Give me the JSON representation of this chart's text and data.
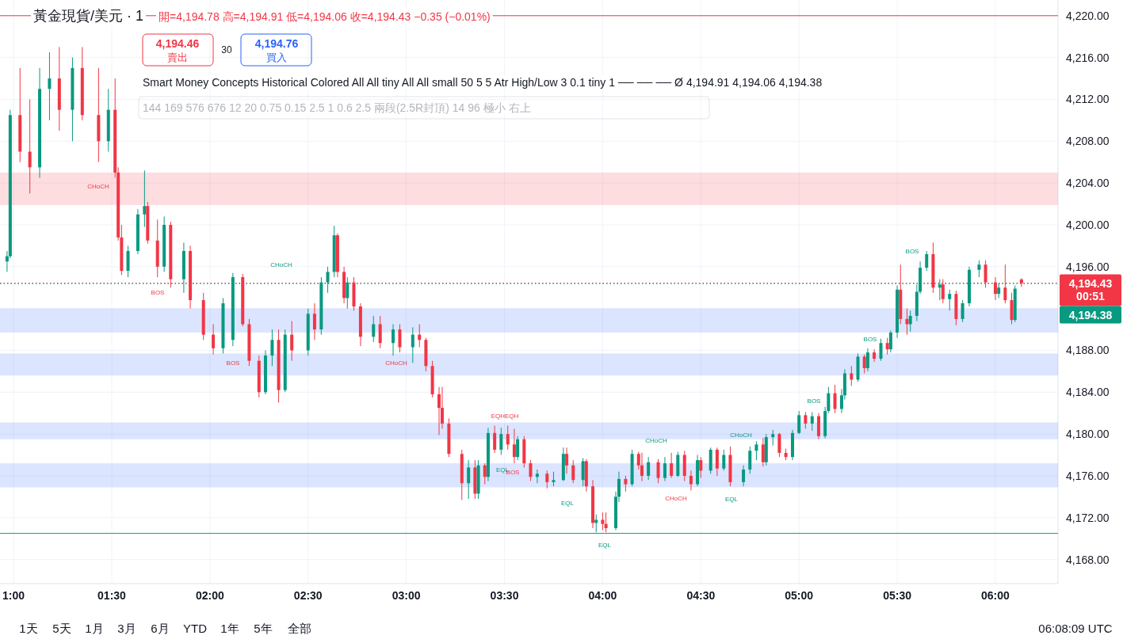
{
  "chart_data": {
    "type": "candlestick",
    "title": "黃金現貨/美元 · 1",
    "subtitle": "開=4,194.78 高=4,194.91 低=4,194.06 收=4,194.43 −0.35 (−0.01%)",
    "x": [
      0.967,
      0.983,
      1.033,
      1.083,
      1.133,
      1.183,
      1.233,
      1.3,
      1.35,
      1.433,
      1.483,
      1.517,
      1.533,
      1.55,
      1.583,
      1.633,
      1.667,
      1.683,
      1.733,
      1.767,
      1.8,
      1.867,
      1.9,
      1.967,
      2.017,
      2.067,
      2.117,
      2.167,
      2.2,
      2.25,
      2.283,
      2.317,
      2.35,
      2.383,
      2.417,
      2.5,
      2.533,
      2.567,
      2.6,
      2.633,
      2.65,
      2.683,
      2.7,
      2.733,
      2.767,
      2.833,
      2.867,
      2.933,
      2.967,
      3.033,
      3.067,
      3.1,
      3.133,
      3.167,
      3.183,
      3.217,
      3.283,
      3.317,
      3.35,
      3.367,
      3.4,
      3.417,
      3.45,
      3.483,
      3.517,
      3.55,
      3.567,
      3.6,
      3.633,
      3.667,
      3.717,
      3.75,
      3.8,
      3.817,
      3.85,
      3.9,
      3.917,
      3.95,
      3.967,
      4.0,
      4.017,
      4.067,
      4.083,
      4.117,
      4.15,
      4.183,
      4.2,
      4.233,
      4.283,
      4.317,
      4.35,
      4.383,
      4.417,
      4.45,
      4.483,
      4.5,
      4.55,
      4.583,
      4.617,
      4.65,
      4.717,
      4.75,
      4.783,
      4.817,
      4.833,
      4.867,
      4.9,
      4.933,
      4.967,
      5.0,
      5.033,
      5.067,
      5.1,
      5.133,
      5.15,
      5.183,
      5.217,
      5.233,
      5.267,
      5.3,
      5.333,
      5.35,
      5.383,
      5.417,
      5.45,
      5.467,
      5.5,
      5.517,
      5.55,
      5.567,
      5.6,
      5.617,
      5.65,
      5.683,
      5.717,
      5.733,
      5.767,
      5.8,
      5.833,
      5.867,
      5.917,
      5.95,
      6.0,
      6.017,
      6.05,
      6.083,
      6.1,
      6.133
    ],
    "ohlc": [
      [
        4196.5,
        4197.5,
        4195.5,
        4197.0
      ],
      [
        4197.0,
        4211.0,
        4196.8,
        4210.5
      ],
      [
        4210.5,
        4215,
        4206,
        4207
      ],
      [
        4207,
        4212,
        4203,
        4205.5
      ],
      [
        4205.5,
        4215,
        4204.5,
        4213
      ],
      [
        4213,
        4216.5,
        4210,
        4214
      ],
      [
        4214,
        4217,
        4209,
        4211
      ],
      [
        4211,
        4216,
        4208,
        4215
      ],
      [
        4215,
        4217,
        4210,
        4210.5
      ],
      [
        4210.5,
        4215,
        4206,
        4208
      ],
      [
        4208,
        4213,
        4207,
        4211
      ],
      [
        4211,
        4214,
        4204.5,
        4205
      ],
      [
        4205,
        4205.5,
        4198.5,
        4198.8
      ],
      [
        4198.8,
        4200,
        4195.2,
        4195.6
      ],
      [
        4195.6,
        4198,
        4195,
        4197.5
      ],
      [
        4197.5,
        4201.5,
        4197.2,
        4201
      ],
      [
        4201,
        4205.2,
        4199.8,
        4201.8
      ],
      [
        4201.8,
        4202.2,
        4198.2,
        4198.5
      ],
      [
        4198.5,
        4200.5,
        4195,
        4196
      ],
      [
        4196,
        4200.8,
        4195.5,
        4200
      ],
      [
        4200,
        4200.3,
        4194,
        4194.8
      ],
      [
        4194.8,
        4198.3,
        4193.5,
        4197.5
      ],
      [
        4197.5,
        4198,
        4192,
        4192.8
      ],
      [
        4192.8,
        4193.5,
        4189,
        4189.5
      ],
      [
        4189.5,
        4190.5,
        4187.6,
        4188.2
      ],
      [
        4188.2,
        4193,
        4187.7,
        4192.5
      ],
      [
        4189,
        4195.4,
        4188.4,
        4195
      ],
      [
        4195,
        4195.3,
        4190.3,
        4190.5
      ],
      [
        4190.5,
        4191,
        4186.5,
        4187
      ],
      [
        4187,
        4187.5,
        4183.5,
        4184
      ],
      [
        4184,
        4188,
        4183.8,
        4187.5
      ],
      [
        4187.5,
        4190,
        4186.5,
        4189
      ],
      [
        4189,
        4190,
        4183,
        4184.2
      ],
      [
        4184.2,
        4190,
        4184,
        4189.5
      ],
      [
        4189.5,
        4190.8,
        4187,
        4188
      ],
      [
        4188,
        4192,
        4187.5,
        4191.5
      ],
      [
        4191.5,
        4192.5,
        4189,
        4190
      ],
      [
        4190,
        4195,
        4189.5,
        4194.5
      ],
      [
        4194.5,
        4196,
        4193.5,
        4195.5
      ],
      [
        4195.5,
        4199.9,
        4195,
        4199
      ],
      [
        4199,
        4199.2,
        4195,
        4195.5
      ],
      [
        4195.5,
        4196,
        4192.5,
        4193
      ],
      [
        4193,
        4195,
        4192,
        4194.5
      ],
      [
        4194.5,
        4195,
        4191.8,
        4192.2
      ],
      [
        4192.2,
        4192.5,
        4188.4,
        4189.3
      ],
      [
        4189.3,
        4191.3,
        4188.8,
        4190.5
      ],
      [
        4190.5,
        4191.3,
        4188.2,
        4188.7
      ],
      [
        4188.7,
        4190.5,
        4187.5,
        4190
      ],
      [
        4190,
        4190.5,
        4187.8,
        4188.3
      ],
      [
        4188.3,
        4190.2,
        4186.8,
        4189.5
      ],
      [
        4189.5,
        4190.5,
        4188.3,
        4189
      ],
      [
        4189,
        4189.2,
        4186,
        4186.5
      ],
      [
        4186.5,
        4187,
        4183.5,
        4183.8
      ],
      [
        4183.8,
        4184.5,
        4179.9,
        4182.5
      ],
      [
        4182.5,
        4184.5,
        4180.5,
        4181
      ],
      [
        4181,
        4181.5,
        4177.8,
        4178.1
      ],
      [
        4178.1,
        4178.5,
        4173.7,
        4175.3
      ],
      [
        4175.3,
        4177.5,
        4173.8,
        4176.8
      ],
      [
        4176.8,
        4177.5,
        4173.8,
        4174.3
      ],
      [
        4174.3,
        4177.5,
        4173.8,
        4177
      ],
      [
        4177,
        4177.2,
        4175.2,
        4175.9
      ],
      [
        4175.9,
        4180.6,
        4175.5,
        4180.1
      ],
      [
        4180.1,
        4180.8,
        4178.2,
        4178.5
      ],
      [
        4178.5,
        4180.6,
        4178,
        4180
      ],
      [
        4180,
        4180.8,
        4178.5,
        4179
      ],
      [
        4179,
        4180.5,
        4177.2,
        4177.8
      ],
      [
        4177.8,
        4179.8,
        4177.5,
        4179.5
      ],
      [
        4179.5,
        4179.8,
        4176.8,
        4177.2
      ],
      [
        4177.2,
        4177.5,
        4175.5,
        4175.9
      ],
      [
        4175.9,
        4176.6,
        4175.3,
        4176.2
      ],
      [
        4176.2,
        4176.5,
        4174.8,
        4175.4
      ],
      [
        4175.4,
        4176.4,
        4175,
        4175.6
      ],
      [
        4175.6,
        4178.7,
        4175.5,
        4178.1
      ],
      [
        4178.1,
        4178.7,
        4176.2,
        4177
      ],
      [
        4177,
        4177.5,
        4175.3,
        4175.6
      ],
      [
        4175.6,
        4177.7,
        4175,
        4177.4
      ],
      [
        4177.4,
        4177.6,
        4174.5,
        4175
      ],
      [
        4175,
        4175.6,
        4171,
        4171.5
      ],
      [
        4171.5,
        4172.3,
        4170.6,
        4171.8
      ],
      [
        4171.8,
        4172.5,
        4170.8,
        4171.4
      ],
      [
        4171.4,
        4172.5,
        4170.6,
        4171
      ],
      [
        4171,
        4174.5,
        4170.8,
        4174
      ],
      [
        4174,
        4176.4,
        4173.5,
        4175.7
      ],
      [
        4175.7,
        4176,
        4174.5,
        4175.2
      ],
      [
        4175.2,
        4178.5,
        4175,
        4178.1
      ],
      [
        4178.1,
        4178.3,
        4176.6,
        4177
      ],
      [
        4177,
        4178.2,
        4175.5,
        4176
      ],
      [
        4176,
        4177.8,
        4175.6,
        4177.3
      ],
      [
        4177.3,
        4177.6,
        4175.3,
        4175.8
      ],
      [
        4175.8,
        4177.8,
        4175.5,
        4177.2
      ],
      [
        4177.2,
        4178.2,
        4175.8,
        4176
      ],
      [
        4176,
        4178.3,
        4175.9,
        4178
      ],
      [
        4178,
        4178.4,
        4175.5,
        4176
      ],
      [
        4176,
        4176.5,
        4174.6,
        4175.2
      ],
      [
        4175.2,
        4178,
        4175,
        4177.5
      ],
      [
        4177.5,
        4177.8,
        4175.8,
        4176.5
      ],
      [
        4176.5,
        4178.7,
        4176.2,
        4178.5
      ],
      [
        4178.5,
        4178.7,
        4176,
        4176.7
      ],
      [
        4176.7,
        4178.5,
        4176.5,
        4178
      ],
      [
        4178,
        4178.8,
        4175,
        4175.4
      ],
      [
        4175.4,
        4177,
        4175,
        4176.6
      ],
      [
        4176.6,
        4178.8,
        4176.2,
        4178.4
      ],
      [
        4178.4,
        4179.3,
        4177.5,
        4179
      ],
      [
        4179,
        4179.6,
        4176.9,
        4177.3
      ],
      [
        4177.3,
        4180,
        4177,
        4179.7
      ],
      [
        4179.7,
        4180.4,
        4178.9,
        4180
      ],
      [
        4180,
        4180.1,
        4177.8,
        4178.2
      ],
      [
        4178.2,
        4178.6,
        4177.5,
        4177.8
      ],
      [
        4177.8,
        4180.4,
        4177.5,
        4180.1
      ],
      [
        4180.1,
        4182.2,
        4180,
        4181.8
      ],
      [
        4181.8,
        4182.1,
        4180.5,
        4181
      ],
      [
        4181,
        4182.1,
        4180.3,
        4181.7
      ],
      [
        4181.7,
        4182,
        4179.5,
        4179.8
      ],
      [
        4179.8,
        4182.6,
        4179.6,
        4182.2
      ],
      [
        4182.2,
        4184.5,
        4182,
        4183.9
      ],
      [
        4183.9,
        4184.7,
        4182,
        4182.4
      ],
      [
        4182.4,
        4184.3,
        4182,
        4183.7
      ],
      [
        4183.7,
        4186.2,
        4183.3,
        4185.8
      ],
      [
        4185.8,
        4186.5,
        4184.6,
        4185.2
      ],
      [
        4185.2,
        4187.7,
        4185,
        4187.4
      ],
      [
        4187.4,
        4187.6,
        4185.8,
        4186.3
      ],
      [
        4186.3,
        4188.2,
        4186,
        4187.8
      ],
      [
        4187.8,
        4188.1,
        4186.9,
        4187.2
      ],
      [
        4187.2,
        4189.1,
        4187,
        4188.7
      ],
      [
        4188.7,
        4189.2,
        4187.6,
        4188.1
      ],
      [
        4188.1,
        4189.9,
        4187.8,
        4189.7
      ],
      [
        4189.7,
        4194.2,
        4189.2,
        4193.8
      ],
      [
        4193.8,
        4196.2,
        4190.5,
        4191
      ],
      [
        4191,
        4192,
        4189.5,
        4190.5
      ],
      [
        4190.5,
        4191.8,
        4189.8,
        4191.3
      ],
      [
        4191.3,
        4194.3,
        4190.8,
        4193.6
      ],
      [
        4193.6,
        4196.5,
        4193.4,
        4195.9
      ],
      [
        4195.9,
        4197.5,
        4195.6,
        4197.2
      ],
      [
        4197.2,
        4198.3,
        4193.5,
        4194
      ],
      [
        4194,
        4194.8,
        4192.8,
        4194.3
      ],
      [
        4194.3,
        4194.8,
        4192.5,
        4192.9
      ],
      [
        4192.9,
        4193.8,
        4191.8,
        4193.4
      ],
      [
        4193.4,
        4193.7,
        4190.4,
        4191
      ],
      [
        4191,
        4192.8,
        4190.7,
        4192.5
      ],
      [
        4192.5,
        4196,
        4192.2,
        4195.7
      ],
      [
        4195.7,
        4196.6,
        4195,
        4196.2
      ],
      [
        4196.2,
        4196.6,
        4194,
        4194.5
      ],
      [
        4194.5,
        4195,
        4192.8,
        4193.4
      ],
      [
        4193.4,
        4194.4,
        4193,
        4194
      ],
      [
        4194,
        4196.2,
        4192.5,
        4192.8
      ],
      [
        4192.8,
        4193.5,
        4190.5,
        4190.9
      ],
      [
        4190.9,
        4194.2,
        4190.7,
        4193.9
      ],
      [
        4194.78,
        4194.91,
        4194.06,
        4194.43
      ]
    ],
    "xlim": [
      0.931,
      6.319
    ],
    "ylim": [
      4165.7,
      4221.5
    ],
    "xticks": [
      {
        "value": 1,
        "label": "1:00"
      },
      {
        "value": 1.5,
        "label": "01:30"
      },
      {
        "value": 2,
        "label": "02:00"
      },
      {
        "value": 2.5,
        "label": "02:30"
      },
      {
        "value": 3,
        "label": "03:00"
      },
      {
        "value": 3.5,
        "label": "03:30"
      },
      {
        "value": 4,
        "label": "04:00"
      },
      {
        "value": 4.5,
        "label": "04:30"
      },
      {
        "value": 5,
        "label": "05:00"
      },
      {
        "value": 5.5,
        "label": "05:30"
      },
      {
        "value": 6,
        "label": "06:00"
      }
    ],
    "yticks": [
      {
        "value": 4168,
        "label": "4,168.00"
      },
      {
        "value": 4172,
        "label": "4,172.00"
      },
      {
        "value": 4176,
        "label": "4,176.00"
      },
      {
        "value": 4180,
        "label": "4,180.00"
      },
      {
        "value": 4184,
        "label": "4,184.00"
      },
      {
        "value": 4188,
        "label": "4,188.00"
      },
      {
        "value": 4192,
        "label": null
      },
      {
        "value": 4196,
        "label": "4,196.00"
      },
      {
        "value": 4200,
        "label": "4,200.00"
      },
      {
        "value": 4204,
        "label": "4,204.00"
      },
      {
        "value": 4208,
        "label": "4,208.00"
      },
      {
        "value": 4212,
        "label": "4,212.00"
      },
      {
        "value": 4216,
        "label": "4,216.00"
      },
      {
        "value": 4220,
        "label": "4,220.00"
      }
    ],
    "grid": true,
    "ref_lines": [
      {
        "axis": "y",
        "value": 4194.43,
        "label": "4,194.43",
        "color": "#f23645",
        "line_style": "dotted"
      },
      {
        "axis": "y",
        "value": 4194.38,
        "label": "4,194.38",
        "color": "#089981",
        "line_style": "dotted"
      },
      {
        "axis": "y",
        "value": 4220,
        "color": "#f23645",
        "line_style": "solid"
      },
      {
        "axis": "y",
        "value": 4170.5,
        "color": "#089981",
        "line_style": "solid"
      }
    ],
    "bands": [
      {
        "axis": "y",
        "from": 4201.9,
        "to": 4205.0,
        "color": "#f23645"
      },
      {
        "axis": "y",
        "from": 4189.7,
        "to": 4192.0,
        "color": "#2962ff"
      },
      {
        "axis": "y",
        "from": 4185.6,
        "to": 4187.7,
        "color": "#2962ff"
      },
      {
        "axis": "y",
        "from": 4179.5,
        "to": 4181.1,
        "color": "#2962ff"
      },
      {
        "axis": "y",
        "from": 4174.9,
        "to": 4177.2,
        "color": "#2962ff"
      }
    ],
    "annotations": [
      "4,194.46",
      "賣出",
      "30",
      "4,194.76",
      "買入",
      "Smart Money Concepts Historical Colored All All tiny All All small 50 5 5 Atr High/Low 3 0.1 tiny 1 ── ── ── Ø 4,194.91 4,194.06 4,194.38",
      "144 169 576 676 12 20 0.75 0.15 2.5 1 0.6 2.5 兩段(2.5R封頂) 14 96 極小 右上",
      "00:51",
      "1天",
      "5天",
      "1月",
      "3月",
      "6月",
      "YTD",
      "1年",
      "5年",
      "全部",
      "06:08:09 UTC",
      "CHoCH",
      "BOS",
      "BOS",
      "CHoCH",
      "CHoCH",
      "EQHEQH",
      "EQL",
      "BOS",
      "EQL",
      "EQL",
      "CHoCH",
      "CHoCH",
      "EQL",
      "CHoCH",
      "BOS",
      "BOS",
      "BOS"
    ]
  }
}
